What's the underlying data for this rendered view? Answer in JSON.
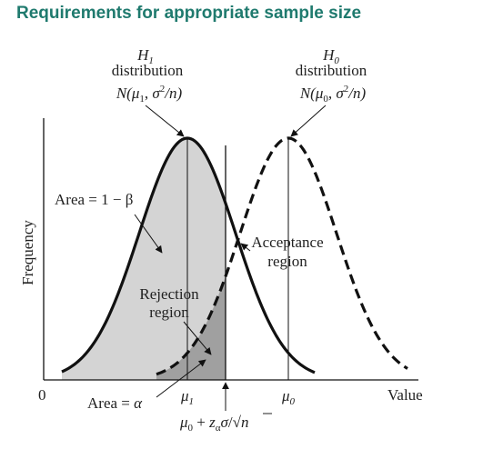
{
  "title": "Requirements for appropriate sample size",
  "colors": {
    "title": "#1f7a6e",
    "curve": "#111111",
    "light_fill": "#d4d4d4",
    "dark_fill": "#a0a0a0"
  },
  "axes": {
    "ylabel": "Frequency",
    "origin_label": "0",
    "xlabel": "Value"
  },
  "h1": {
    "name": "H",
    "sub": "1",
    "word": "distribution",
    "dist": {
      "n": "N(",
      "mu": "μ",
      "musub": "1",
      "comma": ", ",
      "sigma": "σ",
      "sq": "2",
      "rest": "/n)"
    },
    "mu_label": "μ",
    "mu_sub": "1"
  },
  "h0": {
    "name": "H",
    "sub": "0",
    "word": "distribution",
    "dist": {
      "n": "N(",
      "mu": "μ",
      "musub": "0",
      "comma": ", ",
      "sigma": "σ",
      "sq": "2",
      "rest": "/n)"
    },
    "mu_label": "μ",
    "mu_sub": "0"
  },
  "annotations": {
    "power": "Area = 1 − β",
    "acceptance_1": "Acceptance",
    "acceptance_2": "region",
    "rejection_1": "Rejection",
    "rejection_2": "region",
    "alpha_prefix": "Area = ",
    "alpha": "α"
  },
  "critical": {
    "mu": "μ",
    "musub": "0",
    "plus": " + ",
    "z": "z",
    "zsub": "α",
    "sigma": "σ",
    "slash": "/",
    "sqrt": "√",
    "n": "n"
  }
}
